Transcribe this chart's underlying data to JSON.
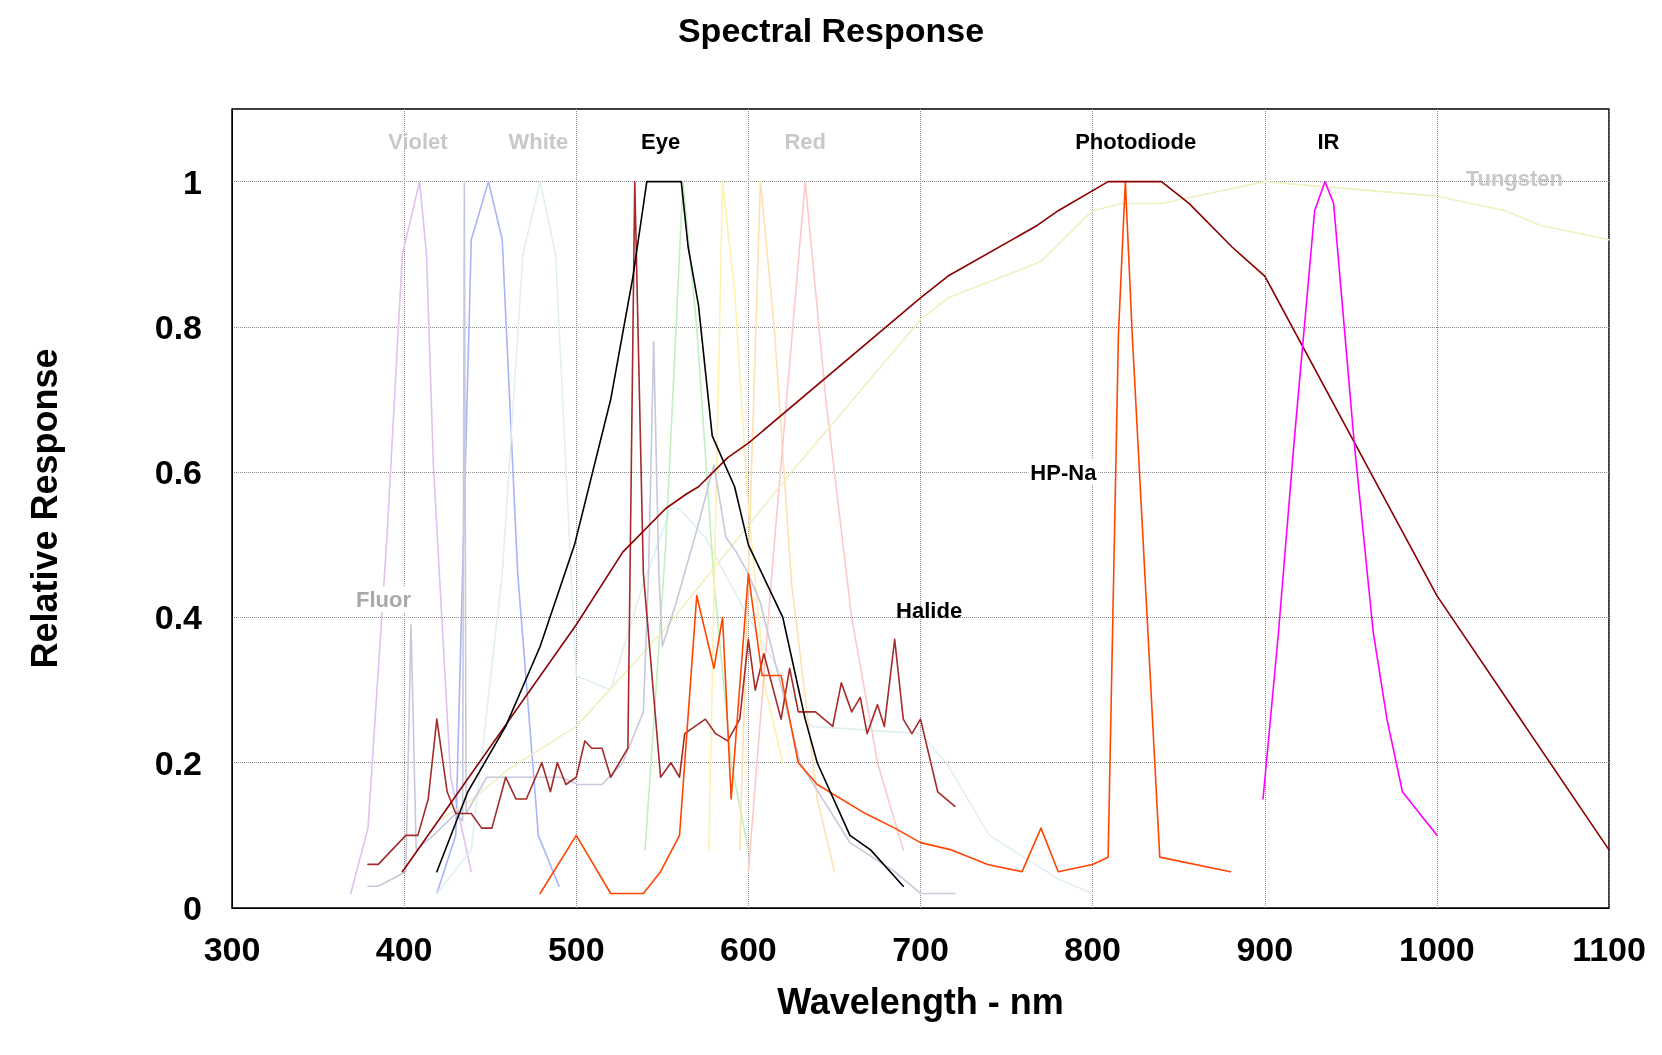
{
  "chart_data": {
    "type": "line",
    "title": "Spectral Response",
    "xlabel": "Wavelength - nm",
    "ylabel": "Relative Response",
    "xlim": [
      300,
      1100
    ],
    "xticks": [
      300,
      400,
      500,
      600,
      700,
      800,
      900,
      1000,
      1100
    ],
    "ylim": [
      0,
      1.1
    ],
    "yticks": [
      0,
      0.2,
      0.4,
      0.6,
      0.8,
      1
    ],
    "grid": true,
    "marker": "none",
    "line_style": "solid",
    "series": [
      {
        "color": "#e0c0f0",
        "x": [
          369,
          379,
          390,
          399,
          409,
          413,
          417,
          427,
          439
        ],
        "values": [
          0.02,
          0.11,
          0.51,
          0.9,
          1.0,
          0.9,
          0.61,
          0.18,
          0.05
        ]
      },
      {
        "color": "#aab4f8",
        "x": [
          419,
          430,
          439,
          449,
          457,
          466,
          478,
          490
        ],
        "values": [
          0.02,
          0.1,
          0.92,
          1.0,
          0.92,
          0.46,
          0.1,
          0.03
        ]
      },
      {
        "color": "#e0f0f0",
        "x": [
          419,
          439,
          457,
          469,
          479,
          488,
          497,
          500,
          520,
          538,
          555,
          560,
          575,
          600,
          636,
          700,
          715,
          740,
          780,
          800
        ],
        "values": [
          0.02,
          0.08,
          0.46,
          0.9,
          1.0,
          0.9,
          0.46,
          0.32,
          0.3,
          0.44,
          0.55,
          0.55,
          0.51,
          0.4,
          0.25,
          0.24,
          0.2,
          0.1,
          0.04,
          0.02
        ]
      },
      {
        "color": "#c0f0c0",
        "x": [
          540,
          552,
          562,
          570,
          580,
          590,
          600
        ],
        "values": [
          0.08,
          0.5,
          1.0,
          0.8,
          0.45,
          0.2,
          0.08
        ]
      },
      {
        "color": "#fff0b0",
        "x": [
          577,
          585,
          592,
          600,
          610,
          620
        ],
        "values": [
          0.08,
          1.0,
          0.85,
          0.55,
          0.3,
          0.2
        ]
      },
      {
        "color": "#ffe0b0",
        "x": [
          595,
          607,
          615,
          625,
          640,
          650
        ],
        "values": [
          0.08,
          1.0,
          0.8,
          0.45,
          0.15,
          0.05
        ]
      },
      {
        "color": "#ffc8c8",
        "x": [
          600,
          615,
          633,
          645,
          660,
          675,
          690
        ],
        "values": [
          0.05,
          0.5,
          1.0,
          0.7,
          0.4,
          0.2,
          0.08
        ]
      },
      {
        "color": "#f0f0c0",
        "x": [
          420,
          440,
          460,
          500,
          550,
          625,
          700,
          716,
          770,
          800,
          817,
          840,
          900,
          1000,
          1040,
          1060,
          1100
        ],
        "values": [
          0.12,
          0.15,
          0.19,
          0.25,
          0.38,
          0.6,
          0.81,
          0.84,
          0.89,
          0.96,
          0.97,
          0.97,
          1.0,
          0.98,
          0.96,
          0.94,
          0.92
        ]
      },
      {
        "color": "#c8c8dc",
        "x": [
          379,
          385,
          401,
          404,
          407,
          417,
          430,
          434,
          435,
          436,
          448,
          457,
          472,
          491,
          501,
          515,
          527,
          539,
          542,
          545,
          548,
          550,
          558,
          570,
          580,
          587,
          593,
          600,
          607,
          630,
          659,
          685,
          700,
          720
        ],
        "values": [
          0.03,
          0.03,
          0.05,
          0.39,
          0.08,
          0.1,
          0.13,
          0.12,
          1.0,
          0.13,
          0.18,
          0.18,
          0.18,
          0.18,
          0.17,
          0.17,
          0.2,
          0.27,
          0.46,
          0.78,
          0.46,
          0.36,
          0.42,
          0.52,
          0.61,
          0.51,
          0.49,
          0.46,
          0.42,
          0.2,
          0.09,
          0.05,
          0.02,
          0.02
        ]
      },
      {
        "color": "#a52a2a",
        "x": [
          379,
          385,
          401,
          408,
          414,
          419,
          425,
          430,
          439,
          445,
          451,
          459,
          465,
          471,
          480,
          485,
          489,
          494,
          500,
          505,
          509,
          515,
          520,
          530,
          534,
          539,
          549,
          555,
          560,
          563,
          575,
          581,
          588,
          595,
          600,
          604,
          609,
          619,
          624,
          629,
          639,
          649,
          654,
          660,
          665,
          669,
          675,
          679,
          685,
          690,
          695,
          700,
          710,
          720
        ],
        "values": [
          0.06,
          0.06,
          0.1,
          0.1,
          0.15,
          0.26,
          0.16,
          0.13,
          0.13,
          0.11,
          0.11,
          0.18,
          0.15,
          0.15,
          0.2,
          0.16,
          0.2,
          0.17,
          0.18,
          0.23,
          0.22,
          0.22,
          0.18,
          0.22,
          1.0,
          0.46,
          0.18,
          0.2,
          0.18,
          0.24,
          0.26,
          0.24,
          0.23,
          0.26,
          0.37,
          0.3,
          0.35,
          0.26,
          0.33,
          0.27,
          0.27,
          0.25,
          0.31,
          0.27,
          0.29,
          0.24,
          0.28,
          0.25,
          0.37,
          0.26,
          0.24,
          0.26,
          0.16,
          0.14
        ]
      },
      {
        "color": "#ff4500",
        "x": [
          479,
          500,
          520,
          539,
          549,
          560,
          570,
          580,
          585,
          590,
          600,
          608,
          619,
          629,
          640,
          668,
          685,
          700,
          718,
          739,
          759,
          770,
          780,
          800,
          809,
          815,
          819,
          823,
          839,
          880
        ],
        "values": [
          0.02,
          0.1,
          0.02,
          0.02,
          0.05,
          0.1,
          0.43,
          0.33,
          0.4,
          0.15,
          0.46,
          0.32,
          0.32,
          0.2,
          0.17,
          0.13,
          0.11,
          0.09,
          0.08,
          0.06,
          0.05,
          0.11,
          0.05,
          0.06,
          0.07,
          0.79,
          1.0,
          0.79,
          0.07,
          0.05
        ]
      },
      {
        "color": "#8b0000",
        "x": [
          399,
          500,
          527,
          552,
          564,
          571,
          588,
          600,
          700,
          716,
          768,
          780,
          809,
          840,
          856,
          881,
          900,
          1000,
          1100
        ],
        "values": [
          0.05,
          0.39,
          0.49,
          0.55,
          0.57,
          0.58,
          0.62,
          0.64,
          0.84,
          0.87,
          0.94,
          0.96,
          1.0,
          1.0,
          0.97,
          0.91,
          0.87,
          0.43,
          0.08
        ]
      },
      {
        "color": "#ff00ff",
        "x": [
          899,
          908,
          917,
          929,
          935,
          940,
          952,
          963,
          971,
          980,
          1000
        ],
        "values": [
          0.15,
          0.38,
          0.64,
          0.96,
          1.0,
          0.97,
          0.64,
          0.38,
          0.26,
          0.16,
          0.1
        ]
      },
      {
        "color": "#000000",
        "x": [
          419,
          437,
          459,
          479,
          499,
          520,
          533,
          541,
          561,
          565,
          571,
          579,
          592,
          600,
          608,
          620,
          633,
          640,
          659,
          671,
          690
        ],
        "values": [
          0.05,
          0.16,
          0.25,
          0.36,
          0.5,
          0.7,
          0.87,
          1.0,
          1.0,
          0.91,
          0.83,
          0.65,
          0.58,
          0.5,
          0.46,
          0.4,
          0.26,
          0.2,
          0.1,
          0.08,
          0.03
        ]
      }
    ],
    "annotations": [
      "Violet",
      "White",
      "Eye",
      "Red",
      "Photodiode",
      "IR",
      "Tungsten",
      "Fluor",
      "HP-Na",
      "Halide"
    ]
  }
}
